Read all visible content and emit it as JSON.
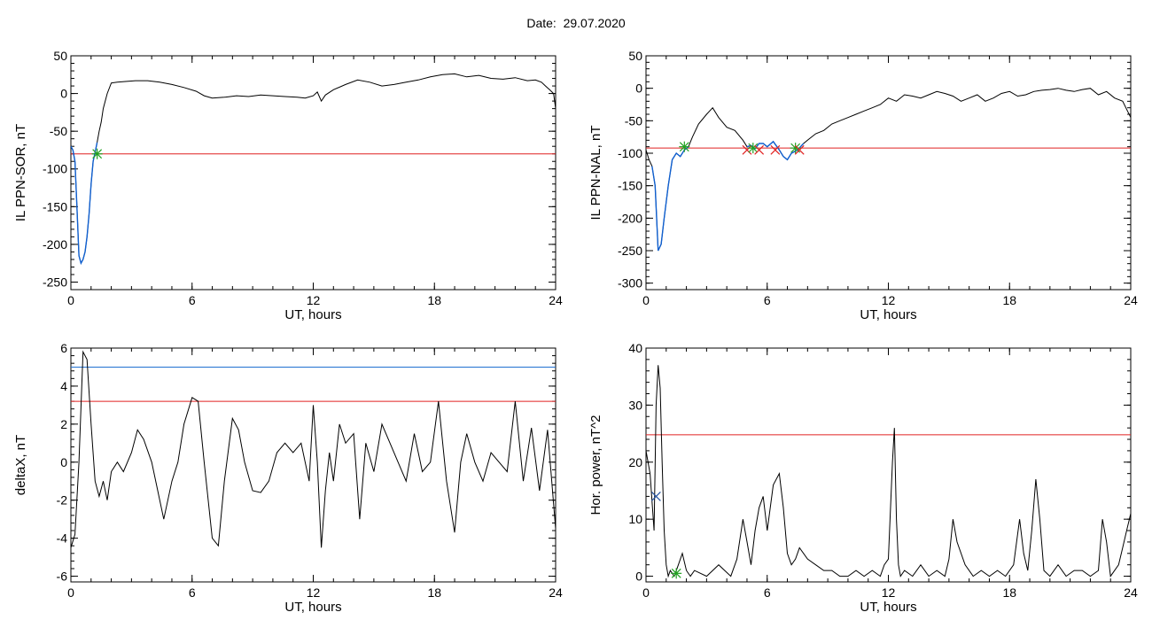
{
  "header": {
    "date_label": "Date:",
    "date_value": "29.07.2020"
  },
  "chart_data": [
    {
      "id": "p1",
      "type": "line",
      "ylabel": "IL PPN-SOR, nT",
      "xlabel": "UT, hours",
      "xlim": [
        0,
        24
      ],
      "ylim": [
        -260,
        50
      ],
      "xticks": [
        0,
        6,
        12,
        18,
        24
      ],
      "yticks": [
        -250,
        -200,
        -150,
        -100,
        -50,
        0,
        50
      ],
      "threshold": {
        "value": -80,
        "color": "#e02020"
      },
      "series": [
        {
          "color": "#000000",
          "x": [
            0,
            0.1,
            0.2,
            0.3,
            0.4,
            0.5,
            0.6,
            0.7,
            0.8,
            0.9,
            1.0,
            1.1,
            1.2,
            1.3,
            1.4,
            1.5,
            1.6,
            1.8,
            2.0,
            2.3,
            2.7,
            3.2,
            3.8,
            4.4,
            5.0,
            5.6,
            6.2,
            6.6,
            7.0,
            7.6,
            8.2,
            8.8,
            9.4,
            10.0,
            10.6,
            11.2,
            11.6,
            12.0,
            12.2,
            12.4,
            12.6,
            13.0,
            13.6,
            14.2,
            14.8,
            15.4,
            16.0,
            16.6,
            17.2,
            17.8,
            18.4,
            19.0,
            19.6,
            20.2,
            20.8,
            21.4,
            22.0,
            22.6,
            23.0,
            23.3,
            23.5,
            23.7,
            23.9,
            24.0
          ],
          "y": [
            -70,
            -75,
            -90,
            -150,
            -215,
            -225,
            -220,
            -210,
            -190,
            -160,
            -120,
            -90,
            -78,
            -65,
            -50,
            -38,
            -20,
            0,
            14,
            15,
            16,
            17,
            17,
            15,
            12,
            8,
            3,
            -3,
            -6,
            -5,
            -3,
            -4,
            -2,
            -3,
            -4,
            -5,
            -6,
            -3,
            2,
            -10,
            -2,
            5,
            12,
            18,
            15,
            10,
            12,
            15,
            18,
            22,
            25,
            26,
            22,
            24,
            20,
            19,
            21,
            17,
            18,
            15,
            10,
            5,
            0,
            -20
          ]
        }
      ],
      "highlight": {
        "color": "#1060d0",
        "x": [
          0,
          0.1,
          0.2,
          0.3,
          0.4,
          0.5,
          0.6,
          0.7,
          0.8,
          0.9,
          1.0,
          1.1,
          1.2,
          1.3
        ],
        "y": [
          -70,
          -75,
          -90,
          -150,
          -215,
          -225,
          -220,
          -210,
          -190,
          -160,
          -120,
          -90,
          -78,
          -65
        ]
      },
      "markers": [
        {
          "x": 1.3,
          "y": -80,
          "symbol": "*",
          "color": "#20a020"
        }
      ]
    },
    {
      "id": "p2",
      "type": "line",
      "ylabel": "IL PPN-NAL, nT",
      "xlabel": "UT, hours",
      "xlim": [
        0,
        24
      ],
      "ylim": [
        -310,
        50
      ],
      "xticks": [
        0,
        6,
        12,
        18,
        24
      ],
      "yticks": [
        -300,
        -250,
        -200,
        -150,
        -100,
        -50,
        0,
        50
      ],
      "threshold": {
        "value": -92,
        "color": "#e02020"
      },
      "series": [
        {
          "color": "#000000",
          "x": [
            0,
            0.15,
            0.3,
            0.45,
            0.6,
            0.75,
            0.9,
            1.1,
            1.3,
            1.5,
            1.7,
            1.9,
            2.1,
            2.3,
            2.6,
            3.0,
            3.3,
            3.6,
            4.0,
            4.4,
            4.8,
            5.0,
            5.2,
            5.4,
            5.6,
            5.8,
            6.0,
            6.3,
            6.6,
            6.8,
            7.0,
            7.2,
            7.5,
            7.8,
            8.0,
            8.4,
            8.8,
            9.2,
            9.6,
            10.0,
            10.4,
            10.8,
            11.2,
            11.6,
            12.0,
            12.4,
            12.8,
            13.2,
            13.6,
            14.0,
            14.4,
            14.8,
            15.2,
            15.6,
            16.0,
            16.4,
            16.8,
            17.2,
            17.6,
            18.0,
            18.4,
            18.8,
            19.2,
            19.6,
            20.0,
            20.4,
            20.8,
            21.2,
            21.6,
            22.0,
            22.4,
            22.8,
            23.2,
            23.6,
            24.0
          ],
          "y": [
            -95,
            -110,
            -120,
            -150,
            -250,
            -240,
            -200,
            -150,
            -110,
            -100,
            -105,
            -95,
            -90,
            -75,
            -55,
            -40,
            -30,
            -45,
            -60,
            -65,
            -80,
            -90,
            -88,
            -93,
            -85,
            -85,
            -90,
            -82,
            -95,
            -105,
            -110,
            -100,
            -95,
            -85,
            -80,
            -70,
            -65,
            -55,
            -50,
            -45,
            -40,
            -35,
            -30,
            -25,
            -15,
            -20,
            -10,
            -12,
            -15,
            -10,
            -5,
            -8,
            -12,
            -20,
            -15,
            -10,
            -20,
            -15,
            -8,
            -5,
            -12,
            -10,
            -5,
            -3,
            -2,
            0,
            -3,
            -5,
            -2,
            0,
            -10,
            -5,
            -15,
            -20,
            -45
          ]
        }
      ],
      "highlight": {
        "color": "#1060d0",
        "x": [
          0.3,
          0.45,
          0.6,
          0.75,
          0.9,
          1.1,
          1.3,
          1.5,
          1.7,
          1.9,
          2.1
        ],
        "y": [
          -120,
          -150,
          -250,
          -240,
          -200,
          -150,
          -110,
          -100,
          -105,
          -95,
          -90
        ]
      },
      "highlight2": {
        "color": "#1060d0",
        "x": [
          5.0,
          5.2,
          5.4,
          5.6,
          5.8,
          6.0,
          6.3,
          6.6,
          6.8,
          7.0,
          7.2,
          7.5,
          7.8
        ],
        "y": [
          -90,
          -88,
          -93,
          -85,
          -85,
          -90,
          -82,
          -95,
          -105,
          -110,
          -100,
          -95,
          -85
        ]
      },
      "markers": [
        {
          "x": 1.9,
          "y": -90,
          "symbol": "*",
          "color": "#20a020"
        },
        {
          "x": 5.0,
          "y": -95,
          "symbol": "x",
          "color": "#e02020"
        },
        {
          "x": 5.3,
          "y": -92,
          "symbol": "*",
          "color": "#20a020"
        },
        {
          "x": 5.6,
          "y": -95,
          "symbol": "x",
          "color": "#e02020"
        },
        {
          "x": 6.4,
          "y": -95,
          "symbol": "x",
          "color": "#e02020"
        },
        {
          "x": 7.4,
          "y": -92,
          "symbol": "*",
          "color": "#20a020"
        },
        {
          "x": 7.6,
          "y": -95,
          "symbol": "x",
          "color": "#e02020"
        }
      ]
    },
    {
      "id": "p3",
      "type": "line",
      "ylabel": "deltaX, nT",
      "xlabel": "UT, hours",
      "xlim": [
        0,
        24
      ],
      "ylim": [
        -6.3,
        6
      ],
      "xticks": [
        0,
        6,
        12,
        18,
        24
      ],
      "yticks": [
        -6,
        -4,
        -2,
        0,
        2,
        4,
        6
      ],
      "threshold": {
        "value": 3.2,
        "color": "#e02020"
      },
      "threshold2": {
        "value": 5.0,
        "color": "#2070d0"
      },
      "series": [
        {
          "color": "#000000",
          "x": [
            0,
            0.2,
            0.4,
            0.6,
            0.8,
            1.0,
            1.2,
            1.4,
            1.6,
            1.8,
            2.0,
            2.3,
            2.6,
            3.0,
            3.3,
            3.6,
            4.0,
            4.3,
            4.6,
            5.0,
            5.3,
            5.6,
            6.0,
            6.3,
            6.6,
            7.0,
            7.3,
            7.6,
            8.0,
            8.3,
            8.6,
            9.0,
            9.4,
            9.8,
            10.2,
            10.6,
            11.0,
            11.4,
            11.8,
            12.0,
            12.2,
            12.4,
            12.6,
            12.8,
            13.0,
            13.3,
            13.6,
            14.0,
            14.3,
            14.6,
            15.0,
            15.4,
            15.8,
            16.2,
            16.6,
            17.0,
            17.4,
            17.8,
            18.2,
            18.6,
            19.0,
            19.3,
            19.6,
            20.0,
            20.4,
            20.8,
            21.2,
            21.6,
            22.0,
            22.4,
            22.8,
            23.2,
            23.6,
            24.0
          ],
          "y": [
            -4.5,
            -3.8,
            0,
            5.8,
            5.4,
            2,
            -1,
            -1.8,
            -1,
            -2,
            -0.5,
            0,
            -0.5,
            0.5,
            1.7,
            1.2,
            0,
            -1.5,
            -3,
            -1,
            0,
            2,
            3.4,
            3.2,
            0,
            -4,
            -4.4,
            -1,
            2.3,
            1.7,
            0,
            -1.5,
            -1.6,
            -1,
            0.5,
            1,
            0.5,
            1,
            -1,
            3,
            0,
            -4.5,
            -1.5,
            0.5,
            -1,
            2,
            1,
            1.5,
            -3,
            1,
            -0.5,
            2,
            1,
            0,
            -1,
            1.5,
            -0.5,
            0,
            3.2,
            -1,
            -3.7,
            0,
            1.5,
            0,
            -1,
            0.5,
            0,
            -0.5,
            3.2,
            -1,
            1.8,
            -1.5,
            1.7,
            -3.5
          ]
        }
      ]
    },
    {
      "id": "p4",
      "type": "line",
      "ylabel": "Hor. power, nT^2",
      "xlabel": "UT, hours",
      "xlim": [
        0,
        24
      ],
      "ylim": [
        -1,
        40
      ],
      "xticks": [
        0,
        6,
        12,
        18,
        24
      ],
      "yticks": [
        0,
        10,
        20,
        30,
        40
      ],
      "threshold": {
        "value": 24.8,
        "color": "#e02020"
      },
      "series": [
        {
          "color": "#000000",
          "x": [
            0,
            0.2,
            0.4,
            0.5,
            0.6,
            0.7,
            0.8,
            0.9,
            1.0,
            1.1,
            1.2,
            1.4,
            1.6,
            1.8,
            2.0,
            2.2,
            2.4,
            3.0,
            3.6,
            4.2,
            4.5,
            4.8,
            5.0,
            5.2,
            5.4,
            5.6,
            5.8,
            6.0,
            6.3,
            6.6,
            6.8,
            7.0,
            7.2,
            7.4,
            7.6,
            8.0,
            8.4,
            8.8,
            9.2,
            9.6,
            10.0,
            10.4,
            10.8,
            11.2,
            11.6,
            11.8,
            12.0,
            12.2,
            12.3,
            12.4,
            12.5,
            12.6,
            12.8,
            13.2,
            13.6,
            14.0,
            14.4,
            14.8,
            15.0,
            15.2,
            15.4,
            15.8,
            16.2,
            16.6,
            17.0,
            17.4,
            17.8,
            18.2,
            18.5,
            18.7,
            18.9,
            19.1,
            19.3,
            19.5,
            19.7,
            20.0,
            20.4,
            20.8,
            21.2,
            21.6,
            22.0,
            22.4,
            22.6,
            22.8,
            23.0,
            23.2,
            23.4,
            23.6,
            23.8,
            24.0
          ],
          "y": [
            22,
            18,
            8,
            30,
            37,
            33,
            20,
            8,
            2,
            0,
            1,
            0,
            2,
            4,
            1,
            0,
            1,
            0,
            2,
            0,
            3,
            10,
            6,
            2,
            8,
            12,
            14,
            8,
            16,
            18,
            12,
            4,
            2,
            3,
            5,
            3,
            2,
            1,
            1,
            0,
            0,
            1,
            0,
            1,
            0,
            2,
            3,
            20,
            26,
            10,
            2,
            0,
            1,
            0,
            2,
            0,
            1,
            0,
            3,
            10,
            6,
            2,
            0,
            1,
            0,
            1,
            0,
            2,
            10,
            4,
            1,
            8,
            17,
            10,
            1,
            0,
            2,
            0,
            1,
            1,
            0,
            1,
            10,
            6,
            0,
            1,
            2,
            5,
            8,
            11
          ]
        }
      ],
      "markers": [
        {
          "x": 0.5,
          "y": 14,
          "symbol": "x",
          "color": "#2050a0"
        },
        {
          "x": 1.5,
          "y": 0.5,
          "symbol": "*",
          "color": "#20a020"
        }
      ]
    }
  ]
}
